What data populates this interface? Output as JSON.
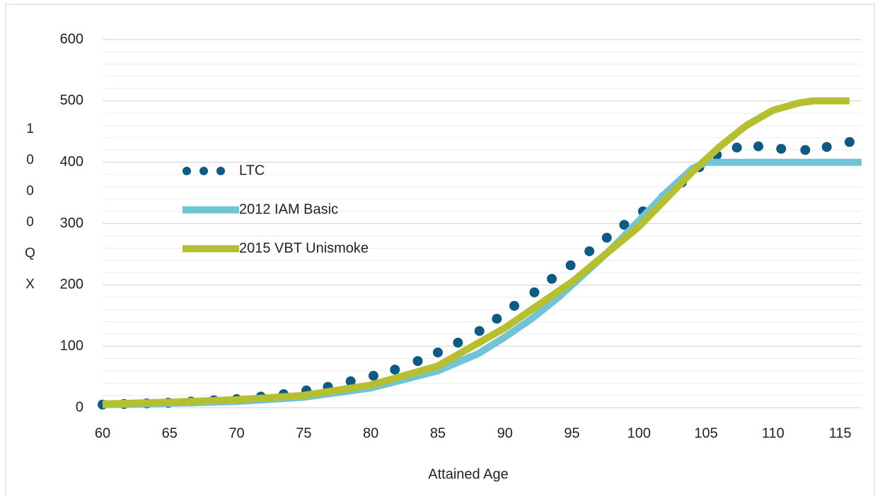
{
  "chart_data": {
    "type": "line",
    "x_label": "Attained Age",
    "y_label": "1000QX",
    "xlim": [
      60,
      116.6
    ],
    "xticks": [
      60,
      65,
      70,
      75,
      80,
      85,
      90,
      95,
      100,
      105,
      110,
      115
    ],
    "ylim": [
      0,
      600
    ],
    "yticks": [
      0,
      100,
      200,
      300,
      400,
      500,
      600
    ],
    "y_minor_grid": [
      20,
      40,
      60,
      80,
      120,
      140,
      160,
      180,
      220,
      240,
      260,
      280,
      320,
      340,
      360,
      380,
      420,
      440,
      460,
      480,
      520,
      540,
      560,
      580
    ],
    "grid": true,
    "legend": "left",
    "series": [
      {
        "name": "LTC",
        "color": "#0f5a80",
        "style": "dots",
        "x": [
          60,
          61.6,
          63.3,
          64.9,
          66.6,
          68.3,
          70,
          71.8,
          73.5,
          75.2,
          76.8,
          78.5,
          80.2,
          81.8,
          83.5,
          85,
          86.5,
          88.1,
          89.4,
          90.7,
          92.2,
          93.5,
          94.9,
          96.3,
          97.6,
          98.9,
          100.3,
          101.8,
          103.2,
          104.5,
          105.8,
          107.3,
          108.9,
          110.6,
          112.4,
          114,
          115.7
        ],
        "values": [
          5,
          6,
          7,
          8,
          10,
          12,
          14,
          18,
          22,
          28,
          34,
          43,
          52,
          62,
          76,
          90,
          106,
          125,
          145,
          166,
          188,
          210,
          232,
          255,
          277,
          298,
          320,
          343,
          367,
          392,
          412,
          424,
          426,
          422,
          420,
          425,
          433
        ]
      },
      {
        "name": "2012 IAM Basic",
        "color": "#72c3d6",
        "style": "line",
        "x": [
          60,
          65,
          70,
          75,
          80,
          85,
          88,
          90,
          92,
          94,
          96,
          98,
          100,
          102,
          104,
          105,
          116.6
        ],
        "values": [
          5,
          7,
          10,
          17,
          32,
          60,
          88,
          115,
          145,
          180,
          220,
          260,
          305,
          350,
          390,
          400,
          400
        ]
      },
      {
        "name": "2015 VBT Unismoke",
        "color": "#b5bf30",
        "style": "line",
        "x": [
          60,
          65,
          70,
          75,
          80,
          85,
          90,
          95,
          100,
          102,
          104,
          106,
          108,
          110,
          112,
          113,
          115.7
        ],
        "values": [
          6,
          9,
          13,
          20,
          37,
          68,
          130,
          205,
          295,
          340,
          385,
          425,
          460,
          485,
          497,
          500,
          500
        ]
      }
    ]
  }
}
